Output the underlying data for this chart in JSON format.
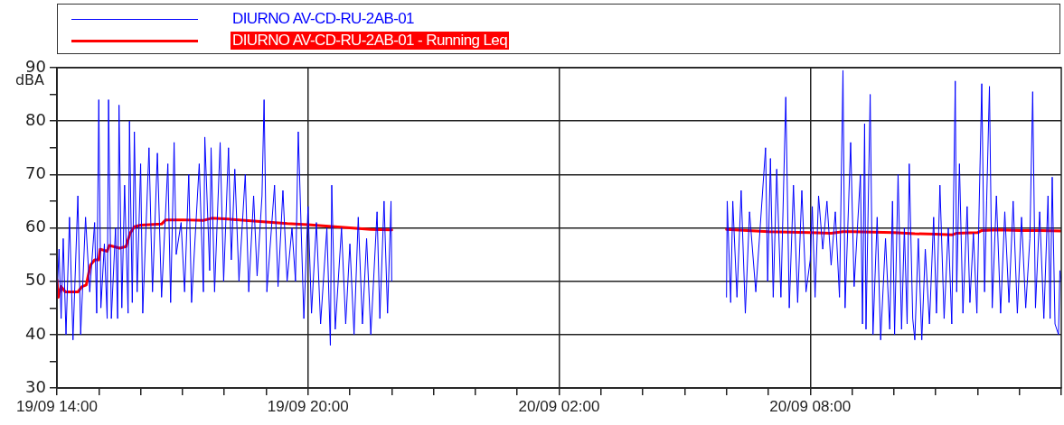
{
  "chart_data": {
    "type": "line",
    "ylabel": "dBA",
    "legend": "top",
    "grid": true,
    "marker": "none",
    "line_style": "solid",
    "xlim": [
      "--09-19T14:00",
      "--09-20T14:00"
    ],
    "ylim": [
      30,
      90
    ],
    "xticks": [
      {
        "value": "--09-19T14:00",
        "label": "19/09 14:00"
      },
      {
        "value": "--09-19T15:00",
        "label": null
      },
      {
        "value": "--09-19T16:00",
        "label": null
      },
      {
        "value": "--09-19T17:00",
        "label": null
      },
      {
        "value": "--09-19T18:00",
        "label": null
      },
      {
        "value": "--09-19T19:00",
        "label": null
      },
      {
        "value": "--09-19T20:00",
        "label": "19/09 20:00"
      },
      {
        "value": "--09-19T21:00",
        "label": null
      },
      {
        "value": "--09-19T22:00",
        "label": null
      },
      {
        "value": "--09-19T23:00",
        "label": null
      },
      {
        "value": "--09-20T00:00",
        "label": null
      },
      {
        "value": "--09-20T01:00",
        "label": null
      },
      {
        "value": "--09-20T02:00",
        "label": "20/09 02:00"
      },
      {
        "value": "--09-20T03:00",
        "label": null
      },
      {
        "value": "--09-20T04:00",
        "label": null
      },
      {
        "value": "--09-20T05:00",
        "label": null
      },
      {
        "value": "--09-20T06:00",
        "label": null
      },
      {
        "value": "--09-20T07:00",
        "label": null
      },
      {
        "value": "--09-20T08:00",
        "label": "20/09 08:00"
      },
      {
        "value": "--09-20T09:00",
        "label": null
      },
      {
        "value": "--09-20T10:00",
        "label": null
      },
      {
        "value": "--09-20T11:00",
        "label": null
      },
      {
        "value": "--09-20T12:00",
        "label": null
      },
      {
        "value": "--09-20T13:00",
        "label": null
      },
      {
        "value": "--09-20T14:00",
        "label": null
      }
    ],
    "yticks": [
      30,
      {
        "value": 35,
        "label": null
      },
      40,
      {
        "value": 45,
        "label": null
      },
      50,
      {
        "value": 55,
        "label": null
      },
      60,
      {
        "value": 65,
        "label": null
      },
      70,
      {
        "value": 75,
        "label": null
      },
      80,
      {
        "value": 85,
        "label": null
      },
      90
    ],
    "series": [
      {
        "name": "DIURNO AV-CD-RU-2AB-01",
        "color": "#0000ff",
        "x": [
          "--09-19T14:00",
          "--09-19T14:03",
          "--09-19T14:06",
          "--09-19T14:09",
          "--09-19T14:13",
          "--09-19T14:18",
          "--09-19T14:23",
          "--09-19T14:30",
          "--09-19T14:34",
          "--09-19T14:41",
          "--09-19T14:47",
          "--09-19T14:54",
          "--09-19T14:57",
          "--09-19T15:00",
          "--09-19T15:03",
          "--09-19T15:08",
          "--09-19T15:12",
          "--09-19T15:14",
          "--09-19T15:18",
          "--09-19T15:24",
          "--09-19T15:27",
          "--09-19T15:29",
          "--09-19T15:33",
          "--09-19T15:37",
          "--09-19T15:42",
          "--09-19T15:44",
          "--09-19T15:48",
          "--09-19T15:51",
          "--09-19T15:55",
          "--09-19T16:00",
          "--09-19T16:03",
          "--09-19T16:12",
          "--09-19T16:17",
          "--09-19T16:24",
          "--09-19T16:30",
          "--09-19T16:39",
          "--09-19T16:43",
          "--09-19T16:48",
          "--09-19T16:51",
          "--09-19T16:58",
          "--09-19T17:03",
          "--09-19T17:09",
          "--09-19T17:13",
          "--09-19T17:24",
          "--09-19T17:30",
          "--09-19T17:32",
          "--09-19T17:39",
          "--09-19T17:41",
          "--09-19T17:46",
          "--09-19T17:54",
          "--09-19T17:59",
          "--09-19T18:06",
          "--09-19T18:10",
          "--09-19T18:15",
          "--09-19T18:21",
          "--09-19T18:30",
          "--09-19T18:35",
          "--09-19T18:42",
          "--09-19T18:47",
          "--09-19T18:54",
          "--09-19T18:57",
          "--09-19T19:01",
          "--09-19T19:12",
          "--09-19T19:17",
          "--09-19T19:24",
          "--09-19T19:30",
          "--09-19T19:37",
          "--09-19T19:42",
          "--09-19T19:46",
          "--09-19T19:54",
          "--09-19T20:00",
          "--09-19T20:05",
          "--09-19T20:12",
          "--09-19T20:18",
          "--09-19T20:27",
          "--09-19T20:32",
          "--09-19T20:34",
          "--09-19T20:39",
          "--09-19T20:48",
          "--09-19T20:54",
          "--09-19T21:00",
          "--09-19T21:06",
          "--09-19T21:12",
          "--09-19T21:18",
          "--09-19T21:24",
          "--09-19T21:30",
          "--09-19T21:39",
          "--09-19T21:43",
          "--09-19T21:49",
          "--09-19T21:54",
          "--09-19T21:59",
          "--09-19T22:00",
          "--09-20T02:00",
          "--09-20T06:00",
          "--09-20T06:01",
          "--09-20T06:06",
          "--09-20T06:09",
          "--09-20T06:15",
          "--09-20T06:21",
          "--09-20T06:27",
          "--09-20T06:33",
          "--09-20T06:42",
          "--09-20T06:56",
          "--09-20T06:59",
          "--09-20T07:03",
          "--09-20T07:07",
          "--09-20T07:12",
          "--09-20T07:18",
          "--09-20T07:25",
          "--09-20T07:30",
          "--09-20T07:36",
          "--09-20T07:42",
          "--09-20T07:48",
          "--09-20T07:54",
          "--09-20T08:00",
          "--09-20T08:03",
          "--09-20T08:07",
          "--09-20T08:12",
          "--09-20T08:18",
          "--09-20T08:24",
          "--09-20T08:30",
          "--09-20T08:36",
          "--09-20T08:42",
          "--09-20T08:47",
          "--09-20T08:50",
          "--09-20T08:58",
          "--09-20T09:03",
          "--09-20T09:12",
          "--09-20T09:15",
          "--09-20T09:18",
          "--09-20T09:20",
          "--09-20T09:26",
          "--09-20T09:30",
          "--09-20T09:36",
          "--09-20T09:41",
          "--09-20T09:48",
          "--09-20T09:54",
          "--09-20T09:58",
          "--09-20T10:01",
          "--09-20T10:06",
          "--09-20T10:11",
          "--09-20T10:15",
          "--09-20T10:19",
          "--09-20T10:22",
          "--09-20T10:27",
          "--09-20T10:30",
          "--09-20T10:35",
          "--09-20T10:40",
          "--09-20T10:45",
          "--09-20T10:51",
          "--09-20T10:57",
          "--09-20T11:01",
          "--09-20T11:06",
          "--09-20T11:12",
          "--09-20T11:18",
          "--09-20T11:23",
          "--09-20T11:28",
          "--09-20T11:30",
          "--09-20T11:34",
          "--09-20T11:39",
          "--09-20T11:45",
          "--09-20T11:49",
          "--09-20T11:54",
          "--09-20T11:59",
          "--09-20T12:06",
          "--09-20T12:10",
          "--09-20T12:13",
          "--09-20T12:17",
          "--09-20T12:21",
          "--09-20T12:27",
          "--09-20T12:33",
          "--09-20T12:39",
          "--09-20T12:45",
          "--09-20T12:51",
          "--09-20T12:57",
          "--09-20T13:03",
          "--09-20T13:09",
          "--09-20T13:15",
          "--09-20T13:19",
          "--09-20T13:23",
          "--09-20T13:29",
          "--09-20T13:35",
          "--09-20T13:41",
          "--09-20T13:44",
          "--09-20T13:47",
          "--09-20T13:51",
          "--09-20T13:56",
          "--09-20T13:58",
          "--09-20T14:00"
        ],
        "values": [
          47,
          56,
          43,
          58,
          40,
          62,
          39,
          66,
          40,
          62,
          48,
          61,
          44,
          84,
          45,
          57,
          43,
          84,
          43,
          60,
          43,
          83,
          45,
          68,
          44,
          80,
          46,
          78,
          48,
          72,
          44,
          75,
          48,
          74,
          47,
          72,
          46,
          76,
          55,
          61,
          48,
          70,
          46,
          72,
          48,
          77,
          52,
          75,
          48,
          76,
          50,
          75,
          54,
          71,
          50,
          70,
          48,
          66,
          51,
          66,
          84,
          48,
          68,
          49,
          67,
          50,
          60,
          50,
          78,
          43,
          64,
          44,
          61,
          42,
          60,
          38,
          68,
          41,
          60,
          42,
          57,
          40,
          62,
          42,
          58,
          40,
          63,
          43,
          65,
          44,
          65,
          50,
          null,
          47,
          65,
          46,
          65,
          47,
          67,
          44,
          63,
          48,
          75,
          50,
          73,
          47,
          71,
          47,
          84.5,
          45,
          68,
          46,
          67,
          48,
          54,
          64,
          47,
          66,
          56,
          65,
          53,
          63,
          47,
          89.5,
          45,
          76,
          49,
          70,
          42,
          79.5,
          41,
          85,
          40,
          62,
          39,
          58,
          41,
          65,
          40,
          70,
          41,
          60,
          42,
          72,
          43,
          39,
          58,
          39,
          56,
          42,
          62,
          44,
          68,
          43,
          60,
          42,
          87.5,
          48,
          72,
          44,
          64,
          46,
          59,
          44,
          87,
          48,
          65,
          86.5,
          45,
          66,
          44,
          63,
          46,
          65,
          44,
          62,
          45,
          58,
          85.5,
          45,
          63,
          43,
          66,
          43,
          69.5,
          42,
          40,
          52,
          50
        ]
      },
      {
        "name": "DIURNO AV-CD-RU-2AB-01  - Running Leq",
        "color": "#ff0000",
        "x": [
          "--09-19T14:00",
          "--09-19T14:02",
          "--09-19T14:06",
          "--09-19T14:12",
          "--09-19T14:30",
          "--09-19T14:36",
          "--09-19T14:42",
          "--09-19T14:48",
          "--09-19T14:54",
          "--09-19T15:00",
          "--09-19T15:02",
          "--09-19T15:12",
          "--09-19T15:15",
          "--09-19T15:30",
          "--09-19T15:39",
          "--09-19T15:45",
          "--09-19T15:51",
          "--09-19T16:00",
          "--09-19T16:30",
          "--09-19T16:36",
          "--09-19T17:00",
          "--09-19T17:30",
          "--09-19T17:42",
          "--09-19T18:00",
          "--09-19T18:30",
          "--09-19T19:00",
          "--09-19T19:30",
          "--09-19T20:00",
          "--09-19T20:30",
          "--09-19T21:00",
          "--09-19T21:30",
          "--09-19T22:00",
          "--09-20T02:00",
          "--09-20T06:00",
          "--09-20T06:30",
          "--09-20T07:00",
          "--09-20T07:30",
          "--09-20T08:00",
          "--09-20T08:30",
          "--09-20T08:47",
          "--09-20T09:00",
          "--09-20T09:30",
          "--09-20T10:00",
          "--09-20T10:30",
          "--09-20T11:00",
          "--09-20T11:24",
          "--09-20T11:30",
          "--09-20T12:00",
          "--09-20T12:06",
          "--09-20T12:30",
          "--09-20T13:00",
          "--09-20T13:30",
          "--09-20T14:00"
        ],
        "values": [
          50.3,
          47,
          49,
          48,
          48,
          49,
          49.3,
          53,
          54,
          54,
          56,
          55.6,
          56.7,
          56.2,
          56.5,
          59,
          60.2,
          60.5,
          60.7,
          61.5,
          61.5,
          61.4,
          61.8,
          61.7,
          61.4,
          61.1,
          60.8,
          60.6,
          60.3,
          60,
          59.7,
          59.6,
          null,
          59.7,
          59.5,
          59.3,
          59.2,
          59.1,
          59,
          59.3,
          59.3,
          59.2,
          59.1,
          58.9,
          58.8,
          58.7,
          59,
          59.1,
          59.5,
          59.6,
          59.5,
          59.5,
          59.4
        ]
      }
    ]
  }
}
